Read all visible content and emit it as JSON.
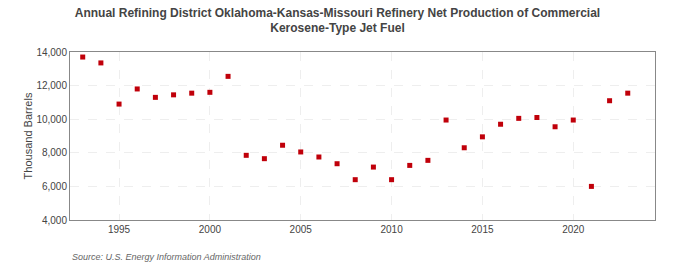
{
  "chart_data": {
    "type": "scatter",
    "title": "Annual Refining District Oklahoma-Kansas-Missouri Refinery Net Production of Commercial\nKerosene-Type Jet Fuel",
    "ylabel": "Thousand Barrels",
    "annotations": [
      "Source: U.S. Energy Information Administration"
    ],
    "x": [
      1993,
      1994,
      1995,
      1996,
      1997,
      1998,
      1999,
      2000,
      2001,
      2002,
      2003,
      2004,
      2005,
      2006,
      2007,
      2008,
      2009,
      2010,
      2011,
      2012,
      2013,
      2014,
      2015,
      2016,
      2017,
      2018,
      2019,
      2020,
      2021,
      2022,
      2023
    ],
    "values": [
      13700,
      13350,
      10900,
      11800,
      11300,
      11450,
      11550,
      11600,
      12550,
      7850,
      7650,
      8450,
      8050,
      7750,
      7350,
      6400,
      7150,
      6400,
      7250,
      7550,
      9950,
      8300,
      8950,
      9700,
      10050,
      10100,
      9550,
      9950,
      6000,
      11100,
      11550
    ],
    "color": "#c0000a",
    "marker": "square",
    "xlim": [
      1992.3,
      2024.5
    ],
    "xticks": [
      1995,
      2000,
      2005,
      2010,
      2015,
      2020
    ],
    "ylim": [
      4000,
      14000
    ],
    "yticks": [
      {
        "value": 4000,
        "label": "4,000"
      },
      {
        "value": 6000,
        "label": "6,000"
      },
      {
        "value": 8000,
        "label": "8,000"
      },
      {
        "value": 10000,
        "label": "10,000"
      },
      {
        "value": 12000,
        "label": "12,000"
      },
      {
        "value": 14000,
        "label": "14,000"
      }
    ],
    "grid": true
  }
}
